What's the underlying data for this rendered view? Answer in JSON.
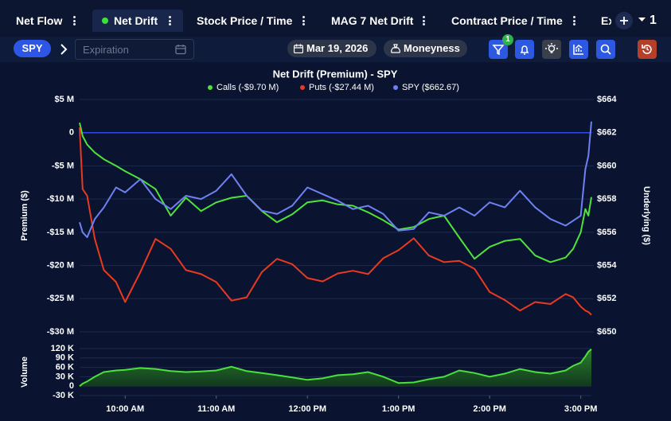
{
  "tabs": [
    "Net Flow",
    "Net Drift",
    "Stock Price / Time",
    "MAG 7 Net Drift",
    "Contract Price / Time",
    "Ex"
  ],
  "tab_count": "1",
  "toolbar": {
    "symbol": "SPY",
    "expiration_placeholder": "Expiration",
    "date": "Mar 19, 2026",
    "moneyness": "Moneyness",
    "filter_badge": "1"
  },
  "chart_data": [
    {
      "type": "line",
      "title": "Net Drift (Premium) - SPY",
      "ylabel": "Premium ($)",
      "y2label": "Underlying ($)",
      "grid": true,
      "legend": "top",
      "x": [
        "09:30",
        "09:32",
        "09:35",
        "09:40",
        "09:46",
        "09:54",
        "10:00",
        "10:10",
        "10:20",
        "10:30",
        "10:40",
        "10:50",
        "11:00",
        "11:10",
        "11:20",
        "11:30",
        "11:40",
        "11:50",
        "12:00",
        "12:10",
        "12:20",
        "12:30",
        "12:40",
        "12:50",
        "13:00",
        "13:10",
        "13:20",
        "13:30",
        "13:40",
        "13:50",
        "14:00",
        "14:10",
        "14:20",
        "14:30",
        "14:40",
        "14:50",
        "14:55",
        "15:00",
        "15:03",
        "15:05",
        "15:07"
      ],
      "xlim": [
        "09:30",
        "15:07"
      ],
      "ylim": [
        -30,
        5
      ],
      "yticks": [
        {
          "value": 5,
          "label": "$5 M"
        },
        0,
        {
          "value": -5,
          "label": "-$5 M"
        },
        {
          "value": -10,
          "label": "-$10 M"
        },
        {
          "value": -15,
          "label": "-$15 M"
        },
        {
          "value": -20,
          "label": "-$20 M"
        },
        {
          "value": -25,
          "label": "-$25 M"
        },
        {
          "value": -30,
          "label": "-$30 M"
        }
      ],
      "y2lim": [
        650,
        664
      ],
      "y2ticks": [
        {
          "value": 664,
          "label": "$664"
        },
        {
          "value": 662,
          "label": "$662"
        },
        {
          "value": 660,
          "label": "$660"
        },
        {
          "value": 658,
          "label": "$658"
        },
        {
          "value": 656,
          "label": "$656"
        },
        {
          "value": 654,
          "label": "$654"
        },
        {
          "value": 652,
          "label": "$652"
        },
        {
          "value": 650,
          "label": "$650"
        }
      ],
      "series": [
        {
          "name": "Calls (-$9.70 M)",
          "color": "#4fe23a",
          "values": [
            1.5,
            -0.5,
            -1.8,
            -3.0,
            -4.0,
            -5.0,
            -5.8,
            -7.0,
            -8.5,
            -12.5,
            -9.8,
            -11.8,
            -10.5,
            -9.8,
            -9.5,
            -11.8,
            -13.5,
            -12.3,
            -10.5,
            -10.2,
            -10.8,
            -11.0,
            -12.0,
            -13.2,
            -14.6,
            -14.2,
            -13.0,
            -12.5,
            -15.8,
            -19.0,
            -17.2,
            -16.3,
            -16.0,
            -18.5,
            -19.5,
            -18.8,
            -17.5,
            -15.0,
            -11.5,
            -12.5,
            -9.7
          ]
        },
        {
          "name": "Puts (-$27.44 M)",
          "color": "#e83a20",
          "values": [
            0.8,
            -8.5,
            -9.5,
            -16,
            -20.7,
            -22.5,
            -25.5,
            -21.0,
            -16.0,
            -17.5,
            -20.7,
            -21.3,
            -22.5,
            -25.3,
            -24.8,
            -21.0,
            -19.0,
            -19.8,
            -21.9,
            -22.4,
            -21.2,
            -20.8,
            -21.3,
            -18.9,
            -17.7,
            -15.9,
            -18.5,
            -19.5,
            -19.3,
            -20.5,
            -24.0,
            -25.2,
            -26.8,
            -25.5,
            -25.8,
            -24.3,
            -24.8,
            -26.2,
            -26.8,
            -27.0,
            -27.44
          ]
        },
        {
          "name": "SPY ($662.67)",
          "color": "#6f80f2",
          "axis": "y2",
          "values": [
            656.6,
            656.0,
            655.7,
            656.8,
            657.5,
            658.7,
            658.4,
            659.2,
            658.0,
            657.4,
            658.2,
            658.0,
            658.5,
            659.5,
            658.2,
            657.3,
            657.1,
            657.6,
            658.7,
            658.3,
            657.9,
            657.4,
            657.6,
            657.1,
            656.1,
            656.2,
            657.2,
            657.0,
            657.5,
            657.0,
            657.8,
            657.5,
            658.5,
            657.5,
            656.8,
            656.4,
            656.7,
            657.0,
            659.8,
            660.6,
            662.67
          ]
        }
      ]
    },
    {
      "type": "area",
      "ylabel": "Volume",
      "grid": true,
      "x": [
        "09:30",
        "09:32",
        "09:35",
        "09:40",
        "09:46",
        "09:54",
        "10:00",
        "10:10",
        "10:20",
        "10:30",
        "10:40",
        "10:50",
        "11:00",
        "11:10",
        "11:20",
        "11:30",
        "11:40",
        "11:50",
        "12:00",
        "12:10",
        "12:20",
        "12:30",
        "12:40",
        "12:50",
        "13:00",
        "13:10",
        "13:20",
        "13:30",
        "13:40",
        "13:50",
        "14:00",
        "14:10",
        "14:20",
        "14:30",
        "14:40",
        "14:50",
        "14:55",
        "15:00",
        "15:03",
        "15:05",
        "15:07"
      ],
      "xlim": [
        "09:30",
        "15:07"
      ],
      "xticks": [
        {
          "value": "10:00",
          "label": "10:00 AM"
        },
        {
          "value": "11:00",
          "label": "11:00 AM"
        },
        {
          "value": "12:00",
          "label": "12:00 PM"
        },
        {
          "value": "13:00",
          "label": "1:00 PM"
        },
        {
          "value": "14:00",
          "label": "2:00 PM"
        },
        {
          "value": "15:00",
          "label": "3:00 PM"
        }
      ],
      "ylim": [
        -30000,
        120000
      ],
      "yticks": [
        {
          "value": 120000,
          "label": "120 K"
        },
        {
          "value": 90000,
          "label": "90 K"
        },
        {
          "value": 60000,
          "label": "60 K"
        },
        {
          "value": 30000,
          "label": "30 K"
        },
        0,
        {
          "value": -30000,
          "label": "-30 K"
        }
      ],
      "series": [
        {
          "name": "Volume",
          "color": "#4be03c",
          "values": [
            0,
            8000,
            15000,
            30000,
            45000,
            50000,
            52000,
            58000,
            55000,
            48000,
            45000,
            47000,
            50000,
            62000,
            48000,
            42000,
            35000,
            28000,
            20000,
            25000,
            35000,
            38000,
            45000,
            30000,
            10000,
            12000,
            22000,
            30000,
            50000,
            42000,
            30000,
            40000,
            55000,
            45000,
            40000,
            50000,
            65000,
            75000,
            95000,
            110000,
            118000
          ]
        }
      ]
    }
  ]
}
